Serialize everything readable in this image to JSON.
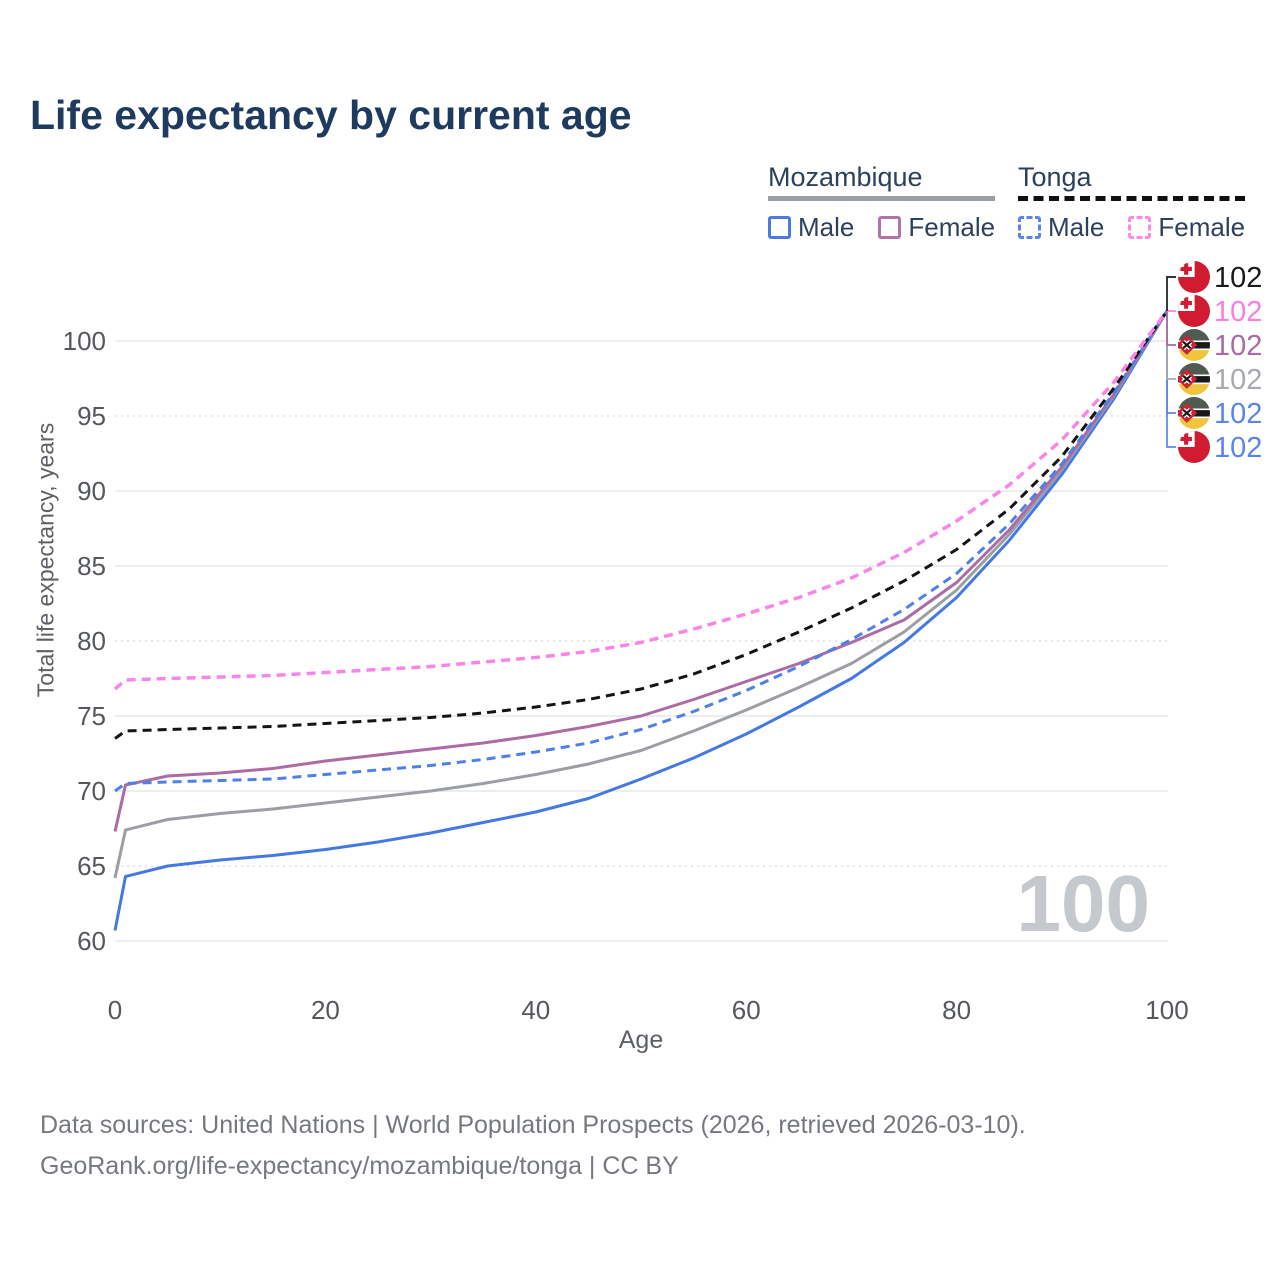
{
  "page": {
    "title": "Life expectancy by current age",
    "watermark": "100",
    "footer_line1": "Data sources: United Nations | World Population Prospects (2026, retrieved 2026-03-10).",
    "footer_line2": "GeoRank.org/life-expectancy/mozambique/tonga | CC BY"
  },
  "legend": {
    "groups": [
      {
        "label": "Mozambique",
        "underline_color": "#9b9ea3",
        "underline_dash": false,
        "items": [
          {
            "label": "Male",
            "swatch_color": "#4a7ae2",
            "swatch_dash": false
          },
          {
            "label": "Female",
            "swatch_color": "#b273ab",
            "swatch_dash": false
          }
        ]
      },
      {
        "label": "Tonga",
        "underline_color": "#111111",
        "underline_dash": true,
        "items": [
          {
            "label": "Male",
            "swatch_color": "#5b86e8",
            "swatch_dash": true
          },
          {
            "label": "Female",
            "swatch_color": "#fb8be8",
            "swatch_dash": true
          }
        ]
      }
    ]
  },
  "chart_data": {
    "type": "line",
    "title": "Life expectancy by current age",
    "xlabel": "Age",
    "ylabel": "Total life expectancy, years",
    "xlim": [
      0,
      100
    ],
    "ylim": [
      60,
      104
    ],
    "x_ticks": [
      0,
      20,
      40,
      60,
      80,
      100
    ],
    "y_ticks": [
      60,
      65,
      70,
      75,
      80,
      85,
      90,
      95,
      100
    ],
    "dotted_y_gridlines": [
      65,
      80,
      95
    ],
    "grid": true,
    "legend_position": "top-right",
    "x": [
      0,
      1,
      5,
      10,
      15,
      20,
      25,
      30,
      35,
      40,
      45,
      50,
      55,
      60,
      65,
      70,
      75,
      80,
      85,
      90,
      95,
      100
    ],
    "series": [
      {
        "id": "mozambique_male",
        "country": "Mozambique",
        "sex": "Male",
        "color": "#4579e2",
        "dash": false,
        "label_color": "#5b86e8",
        "flag": "mozambique",
        "end_label": "102",
        "row": 4,
        "values": [
          60.7,
          64.3,
          65.0,
          65.4,
          65.7,
          66.1,
          66.6,
          67.2,
          67.9,
          68.6,
          69.5,
          70.8,
          72.2,
          73.8,
          75.6,
          77.5,
          79.9,
          82.9,
          86.7,
          91.1,
          96.2,
          102
        ]
      },
      {
        "id": "mozambique_both",
        "country": "Mozambique",
        "sex": "Both sexes",
        "color": "#9b9ea3",
        "dash": false,
        "label_color": "#a7aaaf",
        "flag": "mozambique",
        "end_label": "102",
        "row": 3,
        "values": [
          64.2,
          67.4,
          68.1,
          68.5,
          68.8,
          69.2,
          69.6,
          70.0,
          70.5,
          71.1,
          71.8,
          72.7,
          74.0,
          75.4,
          76.9,
          78.5,
          80.6,
          83.4,
          87.1,
          91.4,
          96.4,
          102
        ]
      },
      {
        "id": "mozambique_female",
        "country": "Mozambique",
        "sex": "Female",
        "color": "#ad6ba6",
        "dash": false,
        "label_color": "#a86ba3",
        "flag": "mozambique",
        "end_label": "102",
        "row": 2,
        "values": [
          67.3,
          70.4,
          71.0,
          71.2,
          71.5,
          72.0,
          72.4,
          72.8,
          73.2,
          73.7,
          74.3,
          75.0,
          76.1,
          77.3,
          78.5,
          79.9,
          81.4,
          83.9,
          87.4,
          91.6,
          96.5,
          102
        ]
      },
      {
        "id": "tonga_male",
        "country": "Tonga",
        "sex": "Male",
        "color": "#4e80e6",
        "dash": true,
        "label_color": "#5b86e8",
        "flag": "tonga",
        "end_label": "102",
        "row": 5,
        "values": [
          70.0,
          70.5,
          70.6,
          70.7,
          70.8,
          71.1,
          71.4,
          71.7,
          72.1,
          72.6,
          73.2,
          74.1,
          75.3,
          76.7,
          78.3,
          80.1,
          82.1,
          84.5,
          87.8,
          91.8,
          96.6,
          102
        ]
      },
      {
        "id": "tonga_both",
        "country": "Tonga",
        "sex": "Both sexes",
        "color": "#141414",
        "dash": true,
        "label_color": "#1a1a1a",
        "flag": "tonga",
        "end_label": "102",
        "row": 0,
        "values": [
          73.5,
          74.0,
          74.1,
          74.2,
          74.3,
          74.5,
          74.7,
          74.9,
          75.2,
          75.6,
          76.1,
          76.8,
          77.8,
          79.1,
          80.6,
          82.2,
          84.0,
          86.1,
          88.8,
          92.3,
          96.9,
          102
        ]
      },
      {
        "id": "tonga_female",
        "country": "Tonga",
        "sex": "Female",
        "color": "#fa85e8",
        "dash": true,
        "label_color": "#f97ee4",
        "flag": "tonga",
        "end_label": "102",
        "row": 1,
        "values": [
          76.8,
          77.4,
          77.5,
          77.6,
          77.7,
          77.9,
          78.1,
          78.3,
          78.6,
          78.9,
          79.3,
          79.9,
          80.8,
          81.8,
          82.9,
          84.2,
          85.9,
          88.0,
          90.4,
          93.4,
          97.3,
          102
        ]
      }
    ],
    "end_value_all_series": 102,
    "colors": {
      "title": "#1e3a5f",
      "tick_label": "#54575c",
      "gridline": "#e6e7e9",
      "gridline_dotted": "#dbdde0",
      "watermark": "#c5c8cd",
      "footer": "#75797f"
    }
  }
}
